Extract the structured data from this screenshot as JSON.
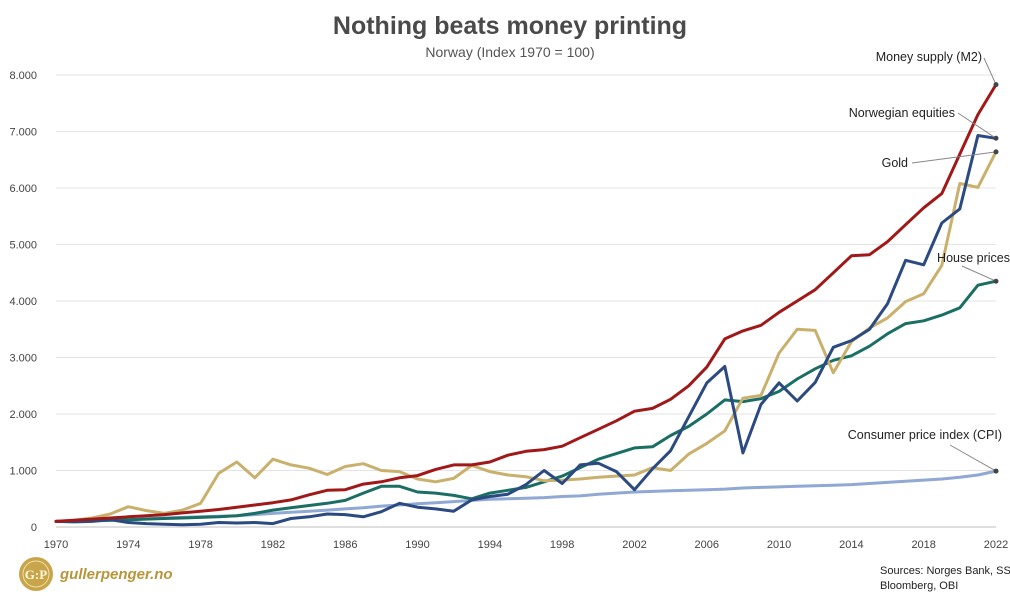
{
  "chart_data": {
    "type": "line",
    "title": "Nothing beats money printing",
    "subtitle": "Norway (Index 1970 = 100)",
    "ylim": [
      0,
      8000
    ],
    "xlim": [
      1970,
      2022
    ],
    "y_ticks": [
      "0",
      "1.000",
      "2.000",
      "3.000",
      "4.000",
      "5.000",
      "6.000",
      "7.000",
      "8.000"
    ],
    "x_ticks": [
      "1970",
      "1974",
      "1978",
      "1982",
      "1986",
      "1990",
      "1994",
      "1998",
      "2002",
      "2006",
      "2010",
      "2014",
      "2018",
      "2022"
    ],
    "grid": "horizontal",
    "x": [
      1970,
      1971,
      1972,
      1973,
      1974,
      1975,
      1976,
      1977,
      1978,
      1979,
      1980,
      1981,
      1982,
      1983,
      1984,
      1985,
      1986,
      1987,
      1988,
      1989,
      1990,
      1991,
      1992,
      1993,
      1994,
      1995,
      1996,
      1997,
      1998,
      1999,
      2000,
      2001,
      2002,
      2003,
      2004,
      2005,
      2006,
      2007,
      2008,
      2009,
      2010,
      2011,
      2012,
      2013,
      2014,
      2015,
      2016,
      2017,
      2018,
      2019,
      2020,
      2021,
      2022
    ],
    "series": [
      {
        "name": "Money supply (M2)",
        "color": "#a01818",
        "values": [
          100,
          120,
          140,
          160,
          180,
          200,
          220,
          250,
          280,
          310,
          350,
          390,
          430,
          480,
          570,
          650,
          660,
          760,
          800,
          870,
          910,
          1020,
          1100,
          1100,
          1150,
          1270,
          1340,
          1370,
          1430,
          1580,
          1730,
          1880,
          2050,
          2100,
          2260,
          2500,
          2830,
          3330,
          3470,
          3570,
          3800,
          4000,
          4200,
          4500,
          4800,
          4820,
          5050,
          5350,
          5650,
          5900,
          6600,
          7300,
          7830
        ]
      },
      {
        "name": "Norwegian equities",
        "color": "#2b4a82",
        "values": [
          100,
          90,
          100,
          130,
          80,
          60,
          50,
          40,
          50,
          80,
          70,
          80,
          60,
          150,
          180,
          230,
          220,
          180,
          270,
          420,
          350,
          320,
          280,
          480,
          540,
          580,
          750,
          1000,
          770,
          1100,
          1130,
          980,
          660,
          1030,
          1350,
          1950,
          2550,
          2840,
          1310,
          2170,
          2550,
          2230,
          2560,
          3180,
          3300,
          3500,
          3950,
          4720,
          4640,
          5380,
          5630,
          6930,
          6880
        ]
      },
      {
        "name": "Gold",
        "color": "#c9b06c",
        "values": [
          100,
          120,
          160,
          230,
          360,
          290,
          240,
          300,
          420,
          950,
          1150,
          870,
          1200,
          1100,
          1040,
          930,
          1070,
          1120,
          1000,
          980,
          850,
          800,
          860,
          1090,
          980,
          920,
          890,
          820,
          830,
          850,
          880,
          900,
          920,
          1050,
          1000,
          1290,
          1480,
          1700,
          2280,
          2330,
          3080,
          3500,
          3480,
          2730,
          3280,
          3520,
          3700,
          3990,
          4130,
          4630,
          6080,
          6010,
          6640
        ]
      },
      {
        "name": "House prices",
        "color": "#1a6e64",
        "values": [
          100,
          105,
          110,
          120,
          130,
          140,
          150,
          160,
          170,
          180,
          200,
          240,
          300,
          340,
          380,
          420,
          470,
          600,
          720,
          720,
          620,
          600,
          560,
          500,
          600,
          650,
          700,
          800,
          900,
          1050,
          1200,
          1300,
          1400,
          1420,
          1620,
          1780,
          2000,
          2250,
          2220,
          2270,
          2400,
          2620,
          2800,
          2950,
          3030,
          3200,
          3420,
          3600,
          3650,
          3750,
          3880,
          4280,
          4350
        ]
      },
      {
        "name": "Consumer price index (CPI)",
        "color": "#8fa8d4",
        "values": [
          100,
          105,
          112,
          120,
          130,
          145,
          160,
          170,
          180,
          190,
          200,
          220,
          240,
          260,
          280,
          300,
          320,
          340,
          370,
          390,
          410,
          430,
          450,
          470,
          490,
          500,
          510,
          520,
          540,
          550,
          580,
          600,
          620,
          630,
          640,
          650,
          660,
          670,
          690,
          700,
          710,
          720,
          730,
          740,
          750,
          770,
          790,
          810,
          830,
          850,
          880,
          920,
          990
        ]
      }
    ]
  },
  "brand": {
    "logo": "G:P",
    "name": "gullerpenger.no"
  },
  "source": {
    "line1": "Sources: Norges Bank, SSB,",
    "line2": "Bloomberg, OBI"
  }
}
